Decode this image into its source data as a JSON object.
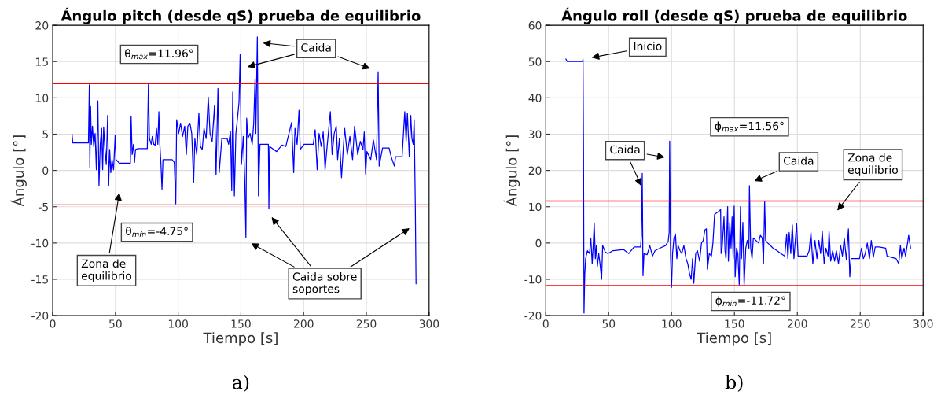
{
  "chart_data": [
    {
      "type": "line",
      "title": "Ángulo pitch (desde qS) prueba de equilibrio",
      "xlabel": "Tiempo [s]",
      "ylabel": "Ángulo [°]",
      "xlim": [
        0,
        300
      ],
      "xticks": [
        0,
        50,
        100,
        150,
        200,
        250,
        300
      ],
      "ylim": [
        -20,
        20
      ],
      "yticks": [
        -20,
        -15,
        -10,
        -5,
        0,
        5,
        10,
        15,
        20
      ],
      "grid": true,
      "series": [
        {
          "color": "#0000ff",
          "x": [
            15.4,
            16.0,
            28.5,
            29.2,
            29.6,
            30.2,
            30.8,
            31.7,
            32.7,
            33.8,
            34.8,
            36.0,
            36.9,
            37.9,
            39.0,
            39.8,
            40.6,
            41.5,
            42.7,
            43.8,
            44.6,
            45.4,
            46.3,
            47.3,
            48.5,
            49.8,
            50.4,
            53.1,
            61.9,
            62.5,
            63.3,
            64.4,
            65.2,
            66.0,
            68.1,
            75.4,
            76.3,
            77.1,
            78.5,
            79.4,
            80.6,
            81.7,
            82.7,
            83.8,
            84.6,
            85.4,
            86.3,
            87.1,
            87.9,
            95.2,
            96.9,
            98.1,
            98.8,
            100.4,
            101.9,
            103.5,
            105.2,
            106.5,
            107.7,
            109.4,
            110.8,
            112.3,
            113.3,
            114.8,
            116.5,
            117.7,
            119.2,
            120.6,
            122.3,
            124.0,
            125.4,
            127.1,
            129.0,
            130.2,
            131.7,
            132.7,
            134.8,
            139.0,
            140.2,
            141.7,
            142.7,
            143.5,
            144.8,
            146.0,
            147.3,
            148.5,
            149.4,
            150.4,
            151.9,
            153.1,
            154.0,
            154.6,
            155.6,
            157.3,
            159.0,
            160.2,
            161.3,
            161.9,
            163.1,
            164.0,
            165.2,
            171.9,
            172.3,
            172.9,
            178.5,
            182.7,
            185.8,
            190.4,
            192.1,
            193.1,
            194.8,
            196.3,
            197.3,
            200.4,
            207.7,
            209.2,
            210.8,
            212.3,
            214.0,
            215.6,
            217.1,
            218.5,
            221.3,
            222.7,
            224.4,
            226.0,
            227.1,
            228.5,
            230.2,
            231.7,
            232.7,
            234.8,
            236.9,
            239.0,
            240.6,
            243.1,
            245.2,
            247.3,
            248.3,
            249.4,
            250.4,
            253.5,
            255.6,
            258.1,
            259.4,
            260.2,
            262.9,
            268.1,
            269.8,
            272.3,
            273.3,
            278.5,
            280.6,
            281.7,
            282.7,
            284.2,
            285.4,
            286.3,
            287.3,
            288.1,
            289.0,
            289.6
          ],
          "values": [
            5.0,
            3.8,
            3.8,
            11.8,
            0.4,
            8.8,
            3.6,
            6.1,
            3.3,
            5.1,
            0.1,
            9.6,
            -2.1,
            3.6,
            5.8,
            0.1,
            6.0,
            3.3,
            0.8,
            7.6,
            -2.1,
            2.9,
            -0.3,
            1.5,
            0.1,
            4.9,
            1.5,
            1.0,
            1.0,
            7.5,
            2.2,
            3.6,
            1.1,
            2.9,
            3.0,
            3.0,
            11.9,
            4.4,
            3.6,
            4.7,
            3.6,
            3.5,
            5.8,
            3.6,
            8.1,
            3.6,
            0.8,
            -2.6,
            1.5,
            1.5,
            1.1,
            -4.6,
            7.0,
            5.1,
            6.5,
            4.7,
            6.1,
            2.2,
            6.1,
            6.5,
            5.1,
            -1.7,
            4.4,
            2.2,
            7.9,
            3.3,
            2.9,
            5.8,
            4.4,
            10.1,
            5.1,
            4.0,
            9.0,
            -0.6,
            11.3,
            -0.3,
            4.4,
            4.4,
            3.6,
            5.4,
            -2.8,
            10.8,
            -3.5,
            5.1,
            7.2,
            9.4,
            16.0,
            0.8,
            4.7,
            -1.4,
            -9.2,
            7.2,
            4.4,
            5.1,
            3.6,
            6.5,
            12.6,
            5.1,
            18.4,
            -3.5,
            3.6,
            3.6,
            -5.3,
            3.3,
            2.6,
            3.5,
            3.3,
            6.6,
            -0.3,
            5.8,
            3.6,
            8.3,
            2.9,
            3.6,
            3.6,
            5.6,
            0.1,
            5.1,
            3.3,
            5.3,
            0.1,
            2.9,
            8.1,
            2.2,
            5.1,
            6.1,
            1.5,
            4.4,
            -1.0,
            3.3,
            5.8,
            2.2,
            4.7,
            1.5,
            6.1,
            2.2,
            4.0,
            2.9,
            5.3,
            -0.5,
            2.6,
            1.5,
            4.2,
            1.5,
            13.6,
            0.6,
            3.1,
            3.1,
            1.9,
            0.6,
            1.9,
            1.9,
            8.1,
            4.0,
            7.9,
            1.9,
            7.6,
            4.4,
            3.6,
            7.0,
            -4.6,
            -15.6
          ]
        }
      ],
      "ref_lines": [
        {
          "axis": "y",
          "value": 11.96,
          "color": "#ff0000"
        },
        {
          "axis": "y",
          "value": -4.75,
          "color": "#ff0000"
        }
      ],
      "annotations": [
        "θ$_{max}$=11.96°",
        "θ$_{min}$=-4.75°",
        "Caida",
        "Zona de\nequilibrio",
        "Caida sobre\nsoportes",
        "a)"
      ]
    },
    {
      "type": "line",
      "title": "Ángulo roll (desde qS) prueba de equilibrio",
      "xlabel": "Tiempo [s]",
      "ylabel": "Ángulo [°]",
      "xlim": [
        0,
        300
      ],
      "xticks": [
        0,
        50,
        100,
        150,
        200,
        250,
        300
      ],
      "ylim": [
        -20,
        60
      ],
      "yticks": [
        -20,
        -10,
        0,
        10,
        20,
        30,
        40,
        50,
        60
      ],
      "grid": true,
      "series": [
        {
          "color": "#0000ff",
          "x": [
            16.0,
            17.1,
            29.2,
            29.6,
            30.0,
            30.4,
            31.0,
            31.7,
            33.1,
            34.8,
            35.8,
            36.9,
            37.9,
            38.5,
            39.4,
            40.2,
            41.0,
            42.1,
            43.1,
            44.4,
            45.2,
            47.3,
            49.4,
            53.5,
            61.9,
            66.0,
            70.2,
            75.4,
            76.0,
            76.7,
            77.3,
            78.1,
            80.6,
            82.7,
            84.8,
            86.9,
            91.0,
            95.2,
            97.3,
            98.1,
            98.5,
            99.2,
            100.0,
            100.8,
            101.9,
            103.1,
            104.2,
            105.2,
            106.7,
            108.1,
            109.8,
            111.5,
            112.9,
            114.4,
            115.6,
            116.7,
            117.7,
            119.2,
            120.6,
            122.3,
            123.8,
            125.2,
            126.5,
            127.7,
            128.5,
            130.0,
            131.7,
            132.9,
            134.2,
            137.3,
            139.0,
            139.4,
            140.2,
            141.7,
            142.5,
            143.3,
            144.6,
            145.2,
            146.3,
            147.3,
            148.1,
            149.0,
            149.8,
            150.6,
            151.7,
            152.7,
            153.8,
            154.8,
            155.6,
            156.7,
            157.7,
            159.0,
            160.2,
            161.5,
            161.9,
            162.9,
            164.0,
            165.0,
            167.1,
            169.2,
            170.6,
            172.1,
            173.1,
            174.0,
            174.8,
            176.5,
            180.6,
            183.8,
            186.9,
            190.0,
            191.5,
            192.5,
            193.5,
            194.8,
            196.0,
            197.3,
            199.4,
            200.6,
            201.9,
            207.7,
            209.4,
            210.8,
            212.3,
            214.0,
            215.6,
            217.1,
            218.5,
            219.8,
            221.3,
            222.7,
            224.4,
            225.2,
            226.5,
            228.1,
            229.6,
            231.0,
            232.7,
            234.4,
            235.8,
            237.3,
            239.0,
            240.6,
            241.7,
            242.7,
            249.4,
            251.0,
            252.5,
            254.0,
            255.6,
            257.3,
            258.8,
            260.4,
            261.9,
            265.0,
            270.2,
            271.3,
            274.4,
            278.5,
            280.6,
            281.9,
            283.1,
            284.8,
            286.0,
            287.3,
            288.5,
            290.0
          ],
          "values": [
            50.7,
            50.0,
            50.0,
            50.7,
            25.1,
            -19.3,
            -8.6,
            -4.3,
            -2.1,
            -2.9,
            1.4,
            -5.7,
            0.7,
            5.6,
            -4.3,
            -0.7,
            -6.4,
            -2.9,
            -5.7,
            -10.0,
            -0.7,
            -2.5,
            -2.9,
            -2.1,
            -1.8,
            -2.9,
            -1.1,
            -1.1,
            2.1,
            19.2,
            -9.0,
            -2.9,
            -3.2,
            -0.7,
            -3.6,
            -2.1,
            -1.4,
            -0.7,
            0.4,
            2.9,
            28.1,
            -3.6,
            -12.2,
            -2.9,
            1.4,
            2.5,
            -4.3,
            -0.7,
            -2.1,
            -2.9,
            -0.7,
            -4.3,
            -5.7,
            -8.6,
            -10.0,
            -4.3,
            -11.1,
            -2.9,
            -2.1,
            -5.0,
            0.0,
            0.7,
            3.6,
            3.9,
            -7.2,
            -2.9,
            -3.6,
            0.0,
            7.9,
            8.7,
            9.2,
            -2.9,
            -1.4,
            7.2,
            -2.1,
            -4.3,
            10.0,
            -5.0,
            5.7,
            -1.4,
            7.2,
            -4.3,
            10.2,
            -9.3,
            -1.4,
            -2.9,
            -11.5,
            10.0,
            -4.3,
            5.7,
            -11.8,
            -1.4,
            0.7,
            -1.4,
            15.8,
            -1.4,
            -4.3,
            1.4,
            0.7,
            0.0,
            2.1,
            1.4,
            -5.7,
            11.5,
            0.7,
            0.0,
            -1.4,
            -2.1,
            -2.9,
            -3.6,
            2.5,
            -4.3,
            2.9,
            -2.9,
            5.0,
            -4.3,
            5.4,
            -3.6,
            -3.6,
            -3.6,
            -2.1,
            2.9,
            -5.7,
            0.7,
            -4.3,
            0.7,
            -2.9,
            3.2,
            -5.7,
            -1.4,
            -3.6,
            3.2,
            -5.0,
            -2.1,
            -5.0,
            -2.1,
            -5.7,
            -0.7,
            -3.6,
            1.4,
            -4.7,
            3.9,
            -9.3,
            -4.3,
            -4.3,
            -1.4,
            -4.3,
            -2.9,
            0.0,
            -4.3,
            0.7,
            -3.9,
            -1.1,
            -1.1,
            -1.4,
            -3.6,
            -3.9,
            -4.3,
            -5.7,
            -0.7,
            -4.3,
            -1.4,
            -3.6,
            -0.7,
            2.1,
            -1.4
          ]
        }
      ],
      "ref_lines": [
        {
          "axis": "y",
          "value": 11.56,
          "color": "#ff0000"
        },
        {
          "axis": "y",
          "value": -11.72,
          "color": "#ff0000"
        }
      ],
      "annotations": [
        "Inicio",
        "ϕ$_{max}$=11.56°",
        {
          "text": "Caida",
          "x": 76.7,
          "y": 15.2
        },
        "Caida",
        "Zona de\nequilibrio",
        "ϕ$_{min}$=-11.72°",
        "b)"
      ]
    }
  ]
}
